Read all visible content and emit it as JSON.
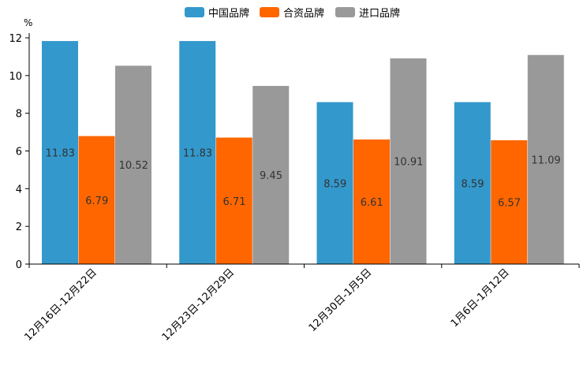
{
  "chart_data": {
    "type": "bar",
    "unit": "%",
    "categories": [
      "12月16日-12月22日",
      "12月23日-12月29日",
      "12月30日-1月5日",
      "1月6日-1月12日"
    ],
    "series": [
      {
        "name": "中国品牌",
        "color": "#3398cc",
        "values": [
          11.83,
          11.83,
          8.59,
          8.59
        ]
      },
      {
        "name": "合资品牌",
        "color": "#ff6600",
        "values": [
          6.79,
          6.71,
          6.61,
          6.57
        ]
      },
      {
        "name": "进口品牌",
        "color": "#999999",
        "values": [
          10.52,
          9.45,
          10.91,
          11.09
        ]
      }
    ],
    "ylim": [
      0,
      12
    ],
    "yticks": [
      0,
      2,
      4,
      6,
      8,
      10,
      12
    ],
    "legend_position": "top-center",
    "grid": false
  }
}
